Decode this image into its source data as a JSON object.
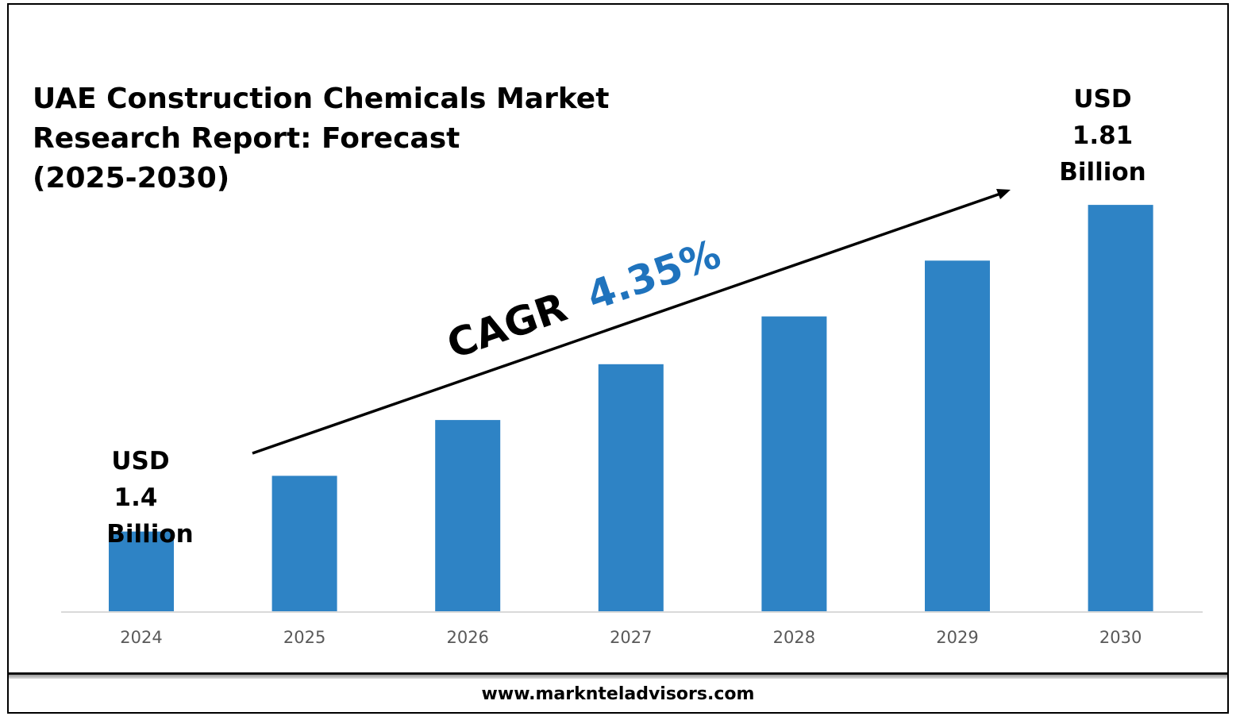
{
  "title": "UAE Construction Chemicals Market\nResearch Report: Forecast\n(2025-2030)",
  "footer": "www.marknteladvisors.com",
  "cagr": {
    "label": "CAGR",
    "value": "4.35%"
  },
  "start_label": {
    "currency": "USD",
    "amount": "1.4",
    "unit": "Billion"
  },
  "end_label": {
    "currency": "USD",
    "amount": "1.81",
    "unit": "Billion"
  },
  "colors": {
    "bar": "#2e83c5",
    "cagr_value": "#1f73bd",
    "axis": "#d9d9d9",
    "tick_label": "#595959"
  },
  "chart_data": {
    "type": "bar",
    "title": "UAE Construction Chemicals Market Research Report: Forecast (2025-2030)",
    "categories": [
      "2024",
      "2025",
      "2026",
      "2027",
      "2028",
      "2029",
      "2030"
    ],
    "values": [
      1.4,
      1.47,
      1.54,
      1.61,
      1.67,
      1.74,
      1.81
    ],
    "unit": "USD Billion",
    "xlabel": "",
    "ylabel": "",
    "ylim": [
      1.3,
      1.83
    ],
    "grid": false,
    "legend": "none"
  }
}
